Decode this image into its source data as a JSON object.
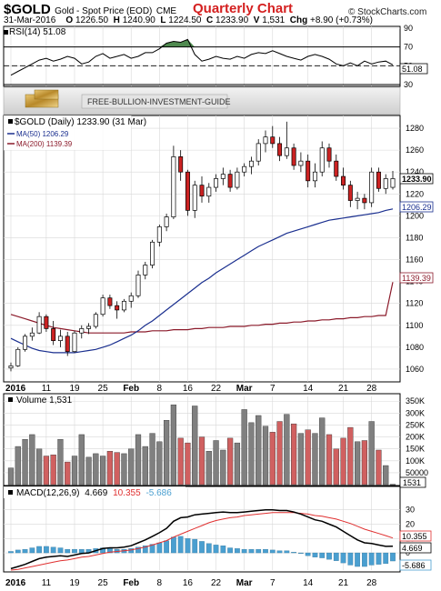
{
  "header": {
    "symbol": "$GOLD",
    "description": "Gold - Spot Price (EOD)",
    "exchange": "CME",
    "annotation": "Quarterly Chart",
    "watermark": "© StockCharts.com",
    "date": "31-Mar-2016",
    "open_label": "O",
    "open": "1226.50",
    "high_label": "H",
    "high": "1240.90",
    "low_label": "L",
    "low": "1224.50",
    "close_label": "C",
    "close": "1233.90",
    "volume_label": "V",
    "volume": "1,531",
    "change_label": "Chg",
    "change": "+8.90 (+0.73%)"
  },
  "banner": {
    "text": "FREE-BULLION-INVESTMENT-GUIDE"
  },
  "colors": {
    "up": "#ffffff",
    "down": "#cc2222",
    "outline": "#000000",
    "ma50": "#1a2f8f",
    "ma200": "#8b1a2a",
    "rsi_fill": "#4f8a4f",
    "vol_up": "#808080",
    "vol_down": "#d06060",
    "macd_hist": "#4a9fd0",
    "macd_signal": "#e03030",
    "grid": "#d8d8d8"
  },
  "chart_data": [
    {
      "type": "line",
      "panel": "rsi",
      "legend": "RSI(14) 51.08",
      "ylim": [
        30,
        90
      ],
      "ticks": [
        30,
        50,
        70,
        90
      ],
      "reference_lines": [
        70,
        30
      ],
      "last_value_label": "51.08",
      "values": [
        40,
        44,
        48,
        52,
        56,
        58,
        55,
        57,
        60,
        58,
        52,
        54,
        60,
        63,
        58,
        60,
        62,
        58,
        60,
        64,
        64,
        68,
        74,
        76,
        75,
        78,
        62,
        55,
        57,
        60,
        58,
        57,
        60,
        58,
        62,
        64,
        63,
        66,
        63,
        60,
        58,
        56,
        60,
        62,
        60,
        57,
        52,
        50,
        53,
        50,
        55,
        52,
        54,
        55,
        51
      ]
    },
    {
      "type": "candlestick",
      "panel": "price",
      "legend_title": "$GOLD (Daily) 1233.90 (31 Mar)",
      "legend_ma50": "MA(50) 1206.29",
      "legend_ma200": "MA(200) 1139.39",
      "ylim": [
        1050,
        1290
      ],
      "ticks": [
        1060,
        1080,
        1100,
        1120,
        1140,
        1160,
        1180,
        1200,
        1220,
        1240,
        1260,
        1280
      ],
      "last_price_label": "1233.90",
      "ma50_label": "1206.29",
      "ma200_label": "1139.39",
      "x_labels": [
        {
          "i": 0,
          "label": "2016"
        },
        {
          "i": 5,
          "label": "11"
        },
        {
          "i": 9,
          "label": "19"
        },
        {
          "i": 13,
          "label": "25"
        },
        {
          "i": 17,
          "label": "Feb"
        },
        {
          "i": 21,
          "label": "8"
        },
        {
          "i": 25,
          "label": "16"
        },
        {
          "i": 29,
          "label": "22"
        },
        {
          "i": 33,
          "label": "Mar"
        },
        {
          "i": 37,
          "label": "7"
        },
        {
          "i": 42,
          "label": "14"
        },
        {
          "i": 47,
          "label": "21"
        },
        {
          "i": 51,
          "label": "28"
        }
      ],
      "ohlc": [
        [
          1061,
          1066,
          1058,
          1063
        ],
        [
          1063,
          1080,
          1062,
          1078
        ],
        [
          1078,
          1092,
          1076,
          1090
        ],
        [
          1090,
          1098,
          1086,
          1093
        ],
        [
          1093,
          1112,
          1092,
          1108
        ],
        [
          1108,
          1110,
          1094,
          1097
        ],
        [
          1097,
          1104,
          1082,
          1086
        ],
        [
          1086,
          1096,
          1080,
          1090
        ],
        [
          1090,
          1094,
          1072,
          1076
        ],
        [
          1076,
          1095,
          1075,
          1093
        ],
        [
          1093,
          1100,
          1088,
          1097
        ],
        [
          1097,
          1102,
          1092,
          1099
        ],
        [
          1099,
          1112,
          1097,
          1110
        ],
        [
          1110,
          1128,
          1108,
          1125
        ],
        [
          1125,
          1128,
          1115,
          1118
        ],
        [
          1118,
          1122,
          1106,
          1114
        ],
        [
          1114,
          1124,
          1112,
          1122
        ],
        [
          1122,
          1130,
          1116,
          1127
        ],
        [
          1127,
          1150,
          1125,
          1146
        ],
        [
          1146,
          1158,
          1142,
          1155
        ],
        [
          1155,
          1178,
          1152,
          1176
        ],
        [
          1176,
          1192,
          1172,
          1190
        ],
        [
          1190,
          1202,
          1186,
          1199
        ],
        [
          1199,
          1264,
          1197,
          1254
        ],
        [
          1254,
          1260,
          1232,
          1240
        ],
        [
          1240,
          1242,
          1200,
          1205
        ],
        [
          1205,
          1232,
          1198,
          1228
        ],
        [
          1228,
          1236,
          1212,
          1218
        ],
        [
          1218,
          1230,
          1212,
          1226
        ],
        [
          1226,
          1238,
          1222,
          1234
        ],
        [
          1234,
          1244,
          1228,
          1238
        ],
        [
          1238,
          1242,
          1222,
          1226
        ],
        [
          1226,
          1244,
          1224,
          1240
        ],
        [
          1240,
          1248,
          1236,
          1245
        ],
        [
          1245,
          1254,
          1238,
          1250
        ],
        [
          1250,
          1270,
          1246,
          1266
        ],
        [
          1266,
          1278,
          1258,
          1272
        ],
        [
          1272,
          1282,
          1262,
          1266
        ],
        [
          1266,
          1272,
          1250,
          1255
        ],
        [
          1255,
          1286,
          1252,
          1262
        ],
        [
          1262,
          1266,
          1242,
          1246
        ],
        [
          1246,
          1258,
          1240,
          1250
        ],
        [
          1250,
          1256,
          1226,
          1232
        ],
        [
          1232,
          1248,
          1226,
          1240
        ],
        [
          1240,
          1268,
          1236,
          1262
        ],
        [
          1262,
          1266,
          1244,
          1250
        ],
        [
          1250,
          1256,
          1232,
          1236
        ],
        [
          1236,
          1244,
          1224,
          1228
        ],
        [
          1228,
          1232,
          1208,
          1214
        ],
        [
          1214,
          1222,
          1206,
          1216
        ],
        [
          1216,
          1220,
          1206,
          1212
        ],
        [
          1212,
          1244,
          1208,
          1240
        ],
        [
          1240,
          1244,
          1222,
          1225
        ],
        [
          1225,
          1238,
          1220,
          1234
        ],
        [
          1226,
          1241,
          1224,
          1234
        ]
      ],
      "ma50": [
        1088,
        1085,
        1082,
        1079,
        1077,
        1076,
        1075,
        1075,
        1075,
        1075,
        1076,
        1077,
        1078,
        1080,
        1082,
        1085,
        1088,
        1091,
        1095,
        1100,
        1104,
        1109,
        1114,
        1119,
        1124,
        1129,
        1134,
        1139,
        1143,
        1148,
        1152,
        1156,
        1160,
        1164,
        1168,
        1172,
        1175,
        1178,
        1181,
        1184,
        1186,
        1188,
        1190,
        1192,
        1194,
        1196,
        1197,
        1198,
        1199,
        1200,
        1201,
        1202,
        1203,
        1205,
        1206.3
      ],
      "ma200": [
        1110,
        1108,
        1106,
        1104,
        1102,
        1100,
        1098,
        1097,
        1096,
        1095,
        1094,
        1093,
        1093,
        1093,
        1093,
        1093,
        1093,
        1094,
        1094,
        1094,
        1095,
        1095,
        1095,
        1096,
        1096,
        1096,
        1097,
        1097,
        1098,
        1098,
        1098,
        1099,
        1099,
        1099,
        1100,
        1100,
        1101,
        1101,
        1102,
        1102,
        1103,
        1103,
        1104,
        1104,
        1105,
        1105,
        1106,
        1106,
        1107,
        1107,
        1108,
        1108,
        1109,
        1109,
        1139.4
      ]
    },
    {
      "type": "bar",
      "panel": "volume",
      "legend": "Volume 1,531",
      "ylim": [
        0,
        370000
      ],
      "ticks": [
        {
          "v": 50000,
          "label": "50000"
        },
        {
          "v": 100000,
          "label": "100K"
        },
        {
          "v": 150000,
          "label": "150K"
        },
        {
          "v": 200000,
          "label": "200K"
        },
        {
          "v": 250000,
          "label": "250K"
        },
        {
          "v": 300000,
          "label": "300K"
        },
        {
          "v": 350000,
          "label": "350K"
        }
      ],
      "last_value_label": "1531",
      "values": [
        70000,
        160000,
        190000,
        210000,
        150000,
        120000,
        125000,
        190000,
        95000,
        120000,
        210000,
        115000,
        130000,
        120000,
        140000,
        135000,
        130000,
        150000,
        210000,
        160000,
        215000,
        180000,
        270000,
        335000,
        195000,
        175000,
        330000,
        200000,
        140000,
        185000,
        145000,
        195000,
        175000,
        315000,
        260000,
        290000,
        245000,
        220000,
        265000,
        295000,
        255000,
        215000,
        230000,
        215000,
        280000,
        210000,
        150000,
        195000,
        240000,
        180000,
        185000,
        265000,
        145000,
        80000,
        1531
      ]
    },
    {
      "type": "line",
      "panel": "macd",
      "legend_prefix": "MACD(12,26,9)",
      "legend_macd": "4.669",
      "legend_signal": "10.355",
      "legend_hist": "-5.686",
      "ylim": [
        -12,
        45
      ],
      "ticks": [
        0,
        10,
        20,
        30
      ],
      "labels": {
        "signal": "10.355",
        "macd": "4.669",
        "hist": "-5.686"
      },
      "macd": [
        -11,
        -9.5,
        -8,
        -6,
        -4,
        -3,
        -2.5,
        -2,
        -2.5,
        -1.5,
        -0.5,
        0,
        1.5,
        3,
        3.5,
        3.5,
        4,
        5,
        7,
        9,
        11.5,
        14,
        17,
        22,
        24.5,
        25,
        26.5,
        27,
        27.5,
        28,
        28.5,
        28,
        28,
        28.5,
        29,
        29.5,
        30,
        30,
        29.5,
        29.5,
        28.5,
        27,
        25,
        23,
        22,
        20,
        18,
        15,
        12,
        9,
        7,
        6.5,
        5.5,
        4.5,
        4.669
      ],
      "signal": [
        -12,
        -11.5,
        -10.5,
        -9.5,
        -8.5,
        -7.5,
        -6.5,
        -5.5,
        -5,
        -4,
        -3,
        -2.5,
        -1.5,
        -0.5,
        0.5,
        1,
        1.5,
        2,
        3,
        4,
        5.5,
        7,
        8.5,
        11,
        13,
        15,
        17,
        19,
        21,
        22.5,
        23.5,
        24.5,
        25,
        26,
        26.5,
        27,
        27.5,
        28,
        28,
        28,
        28,
        27.5,
        27,
        26,
        25.5,
        24.5,
        23.5,
        22,
        20.5,
        18.5,
        16.5,
        15,
        13.5,
        12,
        10.355
      ],
      "histogram": [
        1,
        2,
        2.5,
        3.5,
        4.5,
        4.5,
        4,
        3.5,
        2.5,
        2.5,
        2.5,
        2.5,
        3,
        3.5,
        3,
        2.5,
        2.5,
        3,
        4,
        5,
        6,
        7,
        8.5,
        11,
        11.5,
        10,
        9.5,
        8,
        6.5,
        5.5,
        5,
        3.5,
        3,
        2.5,
        2.5,
        2.5,
        2.5,
        2,
        1.5,
        1.5,
        0.5,
        -0.5,
        -2,
        -3,
        -3.5,
        -4.5,
        -5.5,
        -7,
        -8.5,
        -9.5,
        -9.5,
        -8.5,
        -8,
        -7.5,
        -5.686
      ]
    }
  ],
  "bottom_axis": {
    "labels": [
      "2016",
      "11",
      "19",
      "25",
      "Feb",
      "8",
      "16",
      "22",
      "Mar",
      "7",
      "14",
      "21",
      "28"
    ]
  }
}
